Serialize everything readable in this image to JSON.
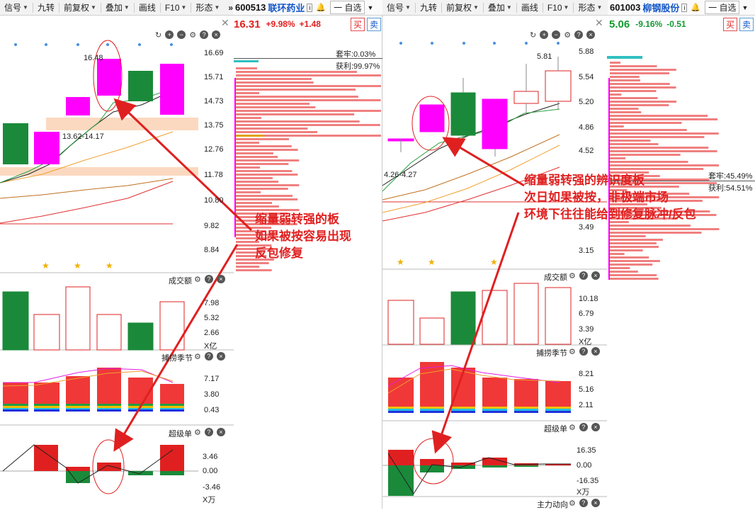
{
  "left": {
    "toolbar": [
      "信号",
      "九转",
      "前复权",
      "叠加",
      "画线",
      "F10",
      "形态"
    ],
    "toolbar_dropdowns": [
      true,
      false,
      true,
      true,
      false,
      true,
      true
    ],
    "more": "»",
    "code": "600513",
    "name": "联环药业",
    "price": "16.31",
    "pct": "+9.98%",
    "change": "+1.48",
    "buy": "买",
    "sell": "卖",
    "watch": "一 自选",
    "price_axis": [
      "16.69",
      "15.71",
      "14.73",
      "13.75",
      "12.76",
      "11.78",
      "10.80",
      "9.82",
      "8.84"
    ],
    "high_label": "16.48",
    "range_label": "13.62-14.17",
    "vol_title": "成交额",
    "vol_axis": [
      "7.98",
      "5.32",
      "2.66",
      "X亿"
    ],
    "season_title": "捕捞季节",
    "season_axis": [
      "7.17",
      "3.80",
      "0.43"
    ],
    "super_title": "超级单",
    "super_axis": [
      "3.46",
      "0.00",
      "-3.46",
      "X万"
    ],
    "trapped": "套牢:0.03%",
    "profit": "获利:99.97%",
    "annotation": [
      "缩量弱转强的板",
      "如果被按容易出现",
      "反包修复"
    ]
  },
  "right": {
    "toolbar": [
      "信号",
      "九转",
      "前复权",
      "叠加",
      "画线",
      "F10",
      "形态"
    ],
    "toolbar_dropdowns": [
      true,
      false,
      true,
      true,
      false,
      true,
      true
    ],
    "more": "»",
    "code": "601003",
    "name": "柳钢股份",
    "price": "5.06",
    "pct": "-9.16%",
    "change": "-0.51",
    "buy": "买",
    "sell": "卖",
    "watch": "一 自选",
    "price_axis": [
      "5.88",
      "5.54",
      "5.20",
      "4.86",
      "4.52",
      "3.49",
      "3.15"
    ],
    "high_label": "5.81",
    "range_label": "4.26-4.27",
    "vol_title": "成交额",
    "vol_axis": [
      "10.18",
      "6.79",
      "3.39",
      "X亿"
    ],
    "season_title": "捕捞季节",
    "season_axis": [
      "8.21",
      "5.16",
      "2.11"
    ],
    "super_title": "超级单",
    "super_axis": [
      "16.35",
      "0.00",
      "-16.35",
      "X万"
    ],
    "main_title": "主力动向",
    "trapped": "套牢:45.49%",
    "profit": "获利:54.51%",
    "annotation": [
      "缩量弱转强的辨识度板",
      "次日如果被按，非极端市场",
      "环境下往往能给到修复脉冲/反包"
    ]
  },
  "colors": {
    "up": "#e02020",
    "down": "#1a8a3a",
    "magenta": "#ff00ff",
    "zone": "#fbd9c0",
    "ma_orange": "#f0a030",
    "ma_red": "#e03030",
    "ma_black": "#222222",
    "ma_green": "#2aa040"
  }
}
